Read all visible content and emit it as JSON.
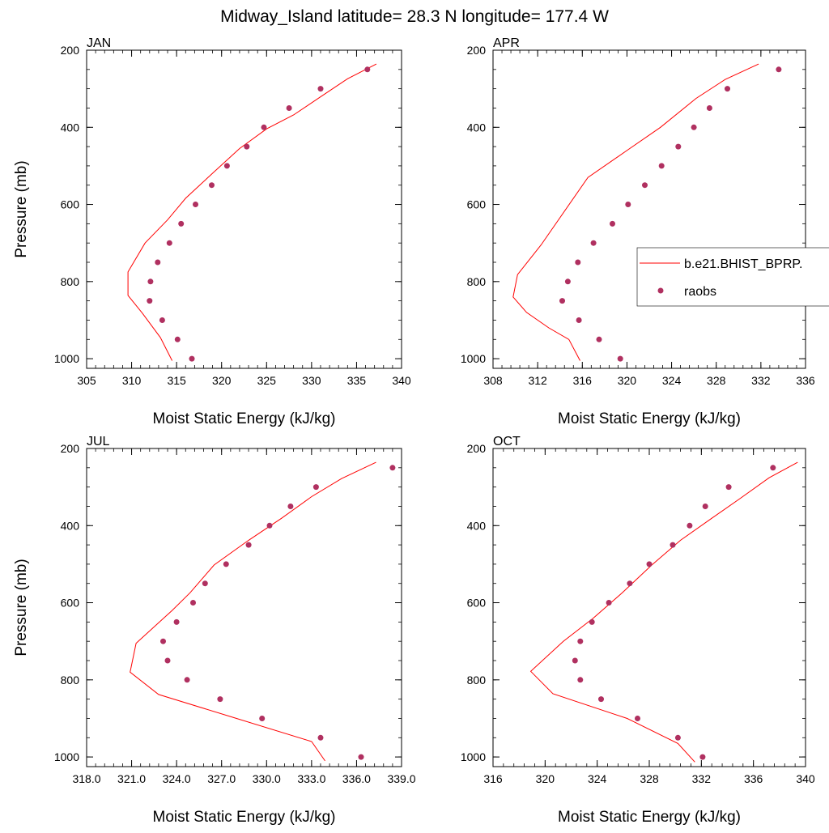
{
  "figure_title": "Midway_Island  latitude= 28.3 N longitude= 177.4 W",
  "legend": {
    "placement": "right",
    "model_label": "b.e21.BHIST_BPRP.",
    "obs_label": "raobs"
  },
  "colors": {
    "model_line": "#ff0000",
    "obs_marker": "#b03060"
  },
  "chart_data": [
    {
      "type": "line",
      "title": "JAN",
      "xlabel": "Moist Static Energy (kJ/kg)",
      "ylabel": "Pressure (mb)",
      "xlim": [
        305,
        340
      ],
      "ylim": [
        1025,
        200
      ],
      "x_ticks": [
        "305",
        "310",
        "315",
        "320",
        "325",
        "330",
        "335",
        "340"
      ],
      "x_tick_values": [
        305,
        310,
        315,
        320,
        325,
        330,
        335,
        340
      ],
      "y_ticks": [
        "200",
        "400",
        "600",
        "800",
        "1000"
      ],
      "y_tick_values": [
        200,
        400,
        600,
        800,
        1000
      ],
      "series": [
        {
          "name": "b.e21.BHIST_BPRP.",
          "kind": "line",
          "x": [
            337.2,
            334,
            331,
            328,
            325,
            322,
            319,
            316,
            314,
            311.5,
            309.6,
            309.6,
            311.2,
            313.2,
            314.5
          ],
          "y": [
            236,
            274,
            321,
            368,
            404,
            455,
            519,
            584,
            640,
            700,
            775,
            836,
            882,
            945,
            1005
          ]
        },
        {
          "name": "raobs",
          "kind": "scatter",
          "x": [
            336.2,
            331,
            327.5,
            324.7,
            322.8,
            320.6,
            318.9,
            317.1,
            315.5,
            314.2,
            312.9,
            312.1,
            312.0,
            313.4,
            315.1,
            316.7
          ],
          "y": [
            250,
            300,
            350,
            400,
            450,
            500,
            550,
            600,
            650,
            700,
            750,
            800,
            850,
            900,
            950,
            1000
          ]
        }
      ]
    },
    {
      "type": "line",
      "title": "APR",
      "xlabel": "Moist Static Energy (kJ/kg)",
      "ylabel": "",
      "xlim": [
        308,
        336
      ],
      "ylim": [
        1025,
        200
      ],
      "x_ticks": [
        "308",
        "312",
        "316",
        "320",
        "324",
        "328",
        "332",
        "336"
      ],
      "x_tick_values": [
        308,
        312,
        316,
        320,
        324,
        328,
        332,
        336
      ],
      "y_ticks": [
        "200",
        "400",
        "600",
        "800",
        "1000"
      ],
      "y_tick_values": [
        200,
        400,
        600,
        800,
        1000
      ],
      "series": [
        {
          "name": "b.e21.BHIST_BPRP.",
          "kind": "line",
          "x": [
            331.8,
            328.8,
            326.2,
            323,
            320,
            316.5,
            312.3,
            310.2,
            309.8,
            311,
            313,
            314.8,
            315.8
          ],
          "y": [
            236,
            276,
            325,
            400,
            460,
            530,
            705,
            782,
            840,
            880,
            920,
            950,
            1005
          ]
        },
        {
          "name": "raobs",
          "kind": "scatter",
          "x": [
            333.6,
            329,
            327.4,
            326,
            324.6,
            323.1,
            321.6,
            320.1,
            318.7,
            317,
            315.6,
            314.7,
            314.2,
            315.7,
            317.5,
            319.4
          ],
          "y": [
            250,
            300,
            350,
            400,
            450,
            500,
            550,
            600,
            650,
            700,
            750,
            800,
            850,
            900,
            950,
            1000
          ]
        }
      ]
    },
    {
      "type": "line",
      "title": "JUL",
      "xlabel": "Moist Static Energy (kJ/kg)",
      "ylabel": "Pressure (mb)",
      "xlim": [
        318,
        339
      ],
      "ylim": [
        1025,
        200
      ],
      "x_ticks": [
        "318.0",
        "321.0",
        "324.0",
        "327.0",
        "330.0",
        "333.0",
        "336.0",
        "339.0"
      ],
      "x_tick_values": [
        318,
        321,
        324,
        327,
        330,
        333,
        336,
        339
      ],
      "y_ticks": [
        "200",
        "400",
        "600",
        "800",
        "1000"
      ],
      "y_tick_values": [
        200,
        400,
        600,
        800,
        1000
      ],
      "series": [
        {
          "name": "b.e21.BHIST_BPRP.",
          "kind": "line",
          "x": [
            337.3,
            335,
            333,
            331,
            328.8,
            326.5,
            324.9,
            323.7,
            321.3,
            320.9,
            322.8,
            328,
            333,
            333.9
          ],
          "y": [
            236,
            278,
            325,
            381,
            438,
            502,
            574,
            620,
            705,
            780,
            838,
            900,
            960,
            1010
          ]
        },
        {
          "name": "raobs",
          "kind": "scatter",
          "x": [
            338.4,
            333.3,
            331.6,
            330.2,
            328.8,
            327.3,
            325.9,
            325.1,
            324.0,
            323.1,
            323.4,
            324.7,
            326.9,
            329.7,
            333.6,
            336.3
          ],
          "y": [
            250,
            300,
            350,
            400,
            450,
            500,
            550,
            600,
            650,
            700,
            750,
            800,
            850,
            900,
            950,
            1000
          ]
        }
      ]
    },
    {
      "type": "line",
      "title": "OCT",
      "xlabel": "Moist Static Energy (kJ/kg)",
      "ylabel": "",
      "xlim": [
        316,
        340
      ],
      "ylim": [
        1025,
        200
      ],
      "x_ticks": [
        "316",
        "320",
        "324",
        "328",
        "332",
        "336",
        "340"
      ],
      "x_tick_values": [
        316,
        320,
        324,
        328,
        332,
        336,
        340
      ],
      "y_ticks": [
        "200",
        "400",
        "600",
        "800",
        "1000"
      ],
      "y_tick_values": [
        200,
        400,
        600,
        800,
        1000
      ],
      "series": [
        {
          "name": "b.e21.BHIST_BPRP.",
          "kind": "line",
          "x": [
            339.4,
            337.2,
            335,
            332.8,
            330.4,
            328.2,
            325.9,
            323.7,
            321.4,
            318.9,
            320.6,
            326.3,
            330.2,
            331.5
          ],
          "y": [
            236,
            276,
            329,
            381,
            438,
            502,
            575,
            640,
            700,
            778,
            836,
            900,
            965,
            1013
          ]
        },
        {
          "name": "raobs",
          "kind": "scatter",
          "x": [
            337.5,
            334.1,
            332.3,
            331.1,
            329.8,
            328,
            326.5,
            324.9,
            323.6,
            322.7,
            322.3,
            322.7,
            324.3,
            327.1,
            330.2,
            332.1
          ],
          "y": [
            250,
            300,
            350,
            400,
            450,
            500,
            550,
            600,
            650,
            700,
            750,
            800,
            850,
            900,
            950,
            1000
          ]
        }
      ]
    }
  ]
}
